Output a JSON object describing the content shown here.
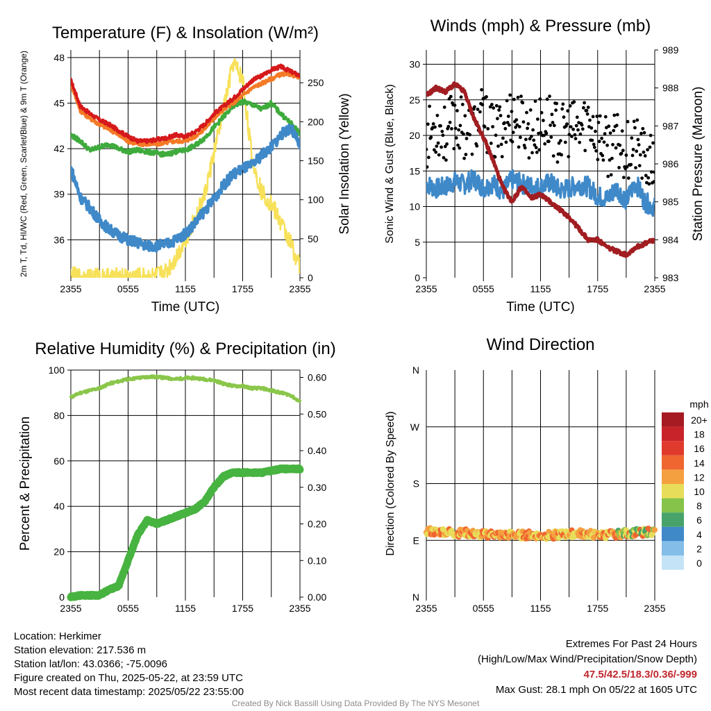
{
  "chart_data": [
    {
      "type": "line",
      "title": "Temperature (F) & Insolation (W/m²)",
      "xlabel": "Time (UTC)",
      "ylabel": "2m T, Td, HI/WC (Red, Green, Scarlet/Blue) & 9m T (Orange)",
      "ylabel_right": "Solar Insolation (Yellow)",
      "x_ticks": [
        "2355",
        "0555",
        "1155",
        "1755",
        "2355"
      ],
      "ylim": [
        33.5,
        48.5
      ],
      "y_ticks": [
        36,
        39,
        42,
        45,
        48
      ],
      "ylim_right": [
        0,
        292
      ],
      "y_ticks_right": [
        0,
        50,
        100,
        150,
        200,
        250
      ],
      "grid": true,
      "x_hours": [
        0,
        1,
        2,
        3,
        4,
        5,
        6,
        7,
        8,
        9,
        10,
        11,
        12,
        13,
        14,
        15,
        16,
        17,
        18,
        19,
        20,
        21,
        22,
        23,
        24
      ],
      "series": [
        {
          "name": "2m T",
          "color": "#d6191b",
          "axis": "left",
          "values": [
            46.5,
            44.8,
            44.3,
            43.9,
            43.6,
            43.2,
            42.8,
            42.5,
            42.5,
            42.6,
            42.7,
            42.9,
            42.8,
            43.1,
            43.6,
            44.3,
            44.8,
            45.3,
            45.9,
            46.5,
            46.8,
            47.2,
            47.4,
            47.1,
            46.8
          ]
        },
        {
          "name": "9m T",
          "color": "#f47a26",
          "axis": "left",
          "values": [
            46.3,
            44.5,
            44.0,
            43.6,
            43.3,
            42.9,
            42.5,
            42.3,
            42.3,
            42.3,
            42.4,
            42.5,
            42.5,
            42.8,
            43.3,
            44.0,
            44.6,
            45.0,
            45.5,
            46.0,
            46.3,
            46.6,
            46.9,
            46.9,
            46.7
          ]
        },
        {
          "name": "Td",
          "color": "#3eab3c",
          "axis": "left",
          "values": [
            42.9,
            42.5,
            41.9,
            42.1,
            42.3,
            42.0,
            41.8,
            41.9,
            41.8,
            41.7,
            41.6,
            41.8,
            41.9,
            42.2,
            42.7,
            43.4,
            44.1,
            44.8,
            45.1,
            44.9,
            44.6,
            45.0,
            44.3,
            43.7,
            43.0
          ]
        },
        {
          "name": "HI/WC",
          "color": "#3f89c9",
          "axis": "left",
          "values": [
            40.7,
            38.8,
            38.1,
            37.3,
            36.7,
            36.3,
            36.0,
            35.8,
            35.6,
            35.6,
            35.7,
            36.0,
            36.4,
            37.1,
            37.9,
            38.7,
            39.6,
            40.3,
            40.7,
            40.9,
            41.6,
            42.1,
            42.9,
            43.4,
            42.2
          ]
        },
        {
          "name": "Solar Insolation",
          "color": "#f7e15a",
          "axis": "right",
          "values": [
            2,
            1,
            1,
            1,
            1,
            1,
            1,
            1,
            1,
            2,
            8,
            25,
            50,
            75,
            105,
            160,
            215,
            275,
            255,
            150,
            110,
            95,
            70,
            45,
            15
          ]
        }
      ]
    },
    {
      "type": "scatter",
      "title": "Winds (mph) & Pressure (mb)",
      "xlabel": "Time (UTC)",
      "ylabel": "Sonic Wind & Gust (Blue, Black)",
      "ylabel_right": "Station Pressure (Maroon)",
      "x_ticks": [
        "2355",
        "0555",
        "1155",
        "1755",
        "2355"
      ],
      "ylim": [
        0,
        32
      ],
      "y_ticks": [
        0,
        5,
        10,
        15,
        20,
        25,
        30
      ],
      "ylim_right": [
        983,
        989
      ],
      "y_ticks_right": [
        983,
        984,
        985,
        986,
        987,
        988,
        989
      ],
      "grid": true,
      "x_hours": [
        0,
        1,
        2,
        3,
        4,
        5,
        6,
        7,
        8,
        9,
        10,
        11,
        12,
        13,
        14,
        15,
        16,
        17,
        18,
        19,
        20,
        21,
        22,
        23,
        24
      ],
      "series": [
        {
          "name": "Sonic Wind",
          "color": "#3f89c9",
          "axis": "left",
          "values": [
            13.2,
            12.5,
            12.8,
            13.5,
            13.1,
            13.9,
            12.6,
            13.3,
            12.1,
            13.8,
            13.2,
            12.9,
            12.7,
            13.4,
            12.3,
            12.6,
            13.1,
            12.8,
            11.5,
            11.1,
            12.6,
            10.8,
            13.4,
            10.6,
            9.9
          ]
        },
        {
          "name": "Gust",
          "color": "#000000",
          "axis": "left",
          "values": [
            19.5,
            21.4,
            20.1,
            22.3,
            20.8,
            21.0,
            22.6,
            19.9,
            21.2,
            23.0,
            21.7,
            20.5,
            21.3,
            22.1,
            19.8,
            21.0,
            20.4,
            22.6,
            20.2,
            18.1,
            19.0,
            17.9,
            18.6,
            16.5,
            15.4
          ]
        },
        {
          "name": "Station Pressure",
          "color": "#a11d21",
          "axis": "right",
          "values": [
            987.8,
            988.0,
            987.9,
            988.1,
            987.9,
            987.2,
            986.7,
            986.1,
            985.4,
            985.0,
            985.4,
            985.1,
            985.2,
            985.0,
            984.8,
            984.6,
            984.3,
            984.0,
            984.0,
            983.8,
            983.7,
            983.6,
            983.8,
            983.9,
            984.0
          ]
        }
      ]
    },
    {
      "type": "line",
      "title": "Relative Humidity (%) & Precipitation (in)",
      "ylabel": "Percent & Precipitation",
      "x_ticks": [
        "2355",
        "0555",
        "1155",
        "1755",
        "2355"
      ],
      "ylim": [
        0,
        100
      ],
      "y_ticks": [
        0,
        20,
        40,
        60,
        80,
        100
      ],
      "ylim_right": [
        0,
        0.62
      ],
      "y_ticks_right": [
        "0.00",
        "0.10",
        "0.20",
        "0.30",
        "0.40",
        "0.50",
        "0.60"
      ],
      "grid": true,
      "x_hours": [
        0,
        1,
        2,
        3,
        4,
        5,
        6,
        7,
        8,
        9,
        10,
        11,
        12,
        13,
        14,
        15,
        16,
        17,
        18,
        19,
        20,
        21,
        22,
        23,
        24
      ],
      "series": [
        {
          "name": "Relative Humidity",
          "color": "#8ac64a",
          "axis": "left",
          "values": [
            88,
            90,
            91,
            92,
            94,
            95,
            96,
            96.5,
            97,
            97,
            96.5,
            96,
            96.5,
            96.5,
            96,
            95.5,
            94,
            93,
            93,
            92,
            92,
            91,
            90,
            89,
            86
          ]
        },
        {
          "name": "Precipitation",
          "color": "#47b340",
          "axis": "right",
          "values": [
            0,
            0.005,
            0.005,
            0.005,
            0.02,
            0.03,
            0.1,
            0.17,
            0.21,
            0.2,
            0.21,
            0.22,
            0.23,
            0.24,
            0.26,
            0.3,
            0.33,
            0.34,
            0.34,
            0.34,
            0.34,
            0.345,
            0.35,
            0.35,
            0.35
          ]
        }
      ]
    },
    {
      "type": "scatter",
      "title": "Wind Direction",
      "ylabel": "Direction (Colored By Speed)",
      "x_ticks": [
        "2355",
        "0555",
        "1155",
        "1755",
        "2355"
      ],
      "y_tick_labels": [
        "N",
        "E",
        "S",
        "W",
        "N"
      ],
      "ylim": [
        0,
        360
      ],
      "grid": true,
      "legend_title": "mph",
      "legend_labels": [
        "20+",
        "18",
        "16",
        "14",
        "12",
        "10",
        "8",
        "6",
        "4",
        "2",
        "0"
      ],
      "legend_colors": [
        "#a51b21",
        "#c8232a",
        "#e03a2c",
        "#ef6630",
        "#f5a040",
        "#e8dd5a",
        "#86c34a",
        "#47a36a",
        "#3f89c9",
        "#84bde8",
        "#c4e3f7"
      ],
      "x_hours": [
        0,
        1,
        2,
        3,
        4,
        5,
        6,
        7,
        8,
        9,
        10,
        11,
        12,
        13,
        14,
        15,
        16,
        17,
        18,
        19,
        20,
        21,
        22,
        23,
        24
      ],
      "series": [
        {
          "name": "Direction",
          "color": "#ef6630",
          "axis": "left",
          "values": [
            105,
            103,
            104,
            101,
            102,
            100,
            99,
            100,
            98,
            99,
            98,
            99,
            97,
            98,
            99,
            100,
            101,
            100,
            98,
            99,
            100,
            101,
            102,
            103,
            104
          ]
        }
      ]
    }
  ],
  "footer": {
    "location": "Location: Herkimer",
    "elevation": "Station elevation: 217.536 m",
    "latlon": "Station lat/lon: 43.0366; -75.0096",
    "created": "Figure created on Thu, 2025-05-22, at 23:59 UTC",
    "recent": "Most recent data timestamp: 2025/05/22 23:55:00",
    "extremes_title": "Extremes For Past 24 Hours",
    "extremes_desc": "(High/Low/Max Wind/Precipitation/Snow Depth)",
    "extremes_values": "47.5/42.5/18.3/0.36/-999",
    "max_gust": "Max Gust: 28.1 mph On 05/22 at 1605 UTC",
    "credit": "Created By Nick Bassill Using Data Provided By The NYS Mesonet"
  }
}
